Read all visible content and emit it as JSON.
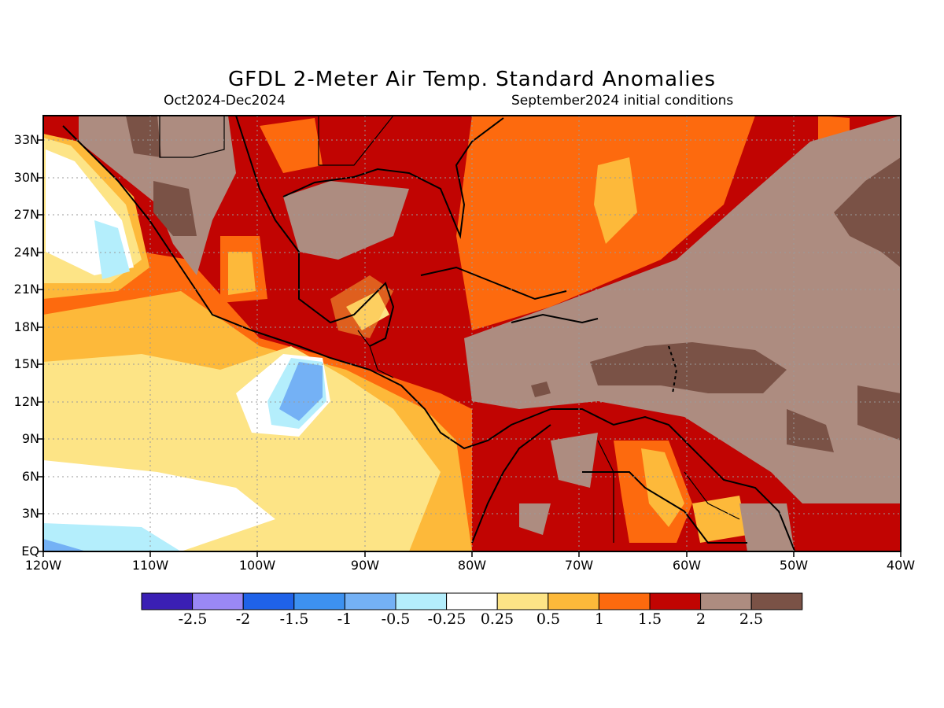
{
  "title": "GFDL 2-Meter Air Temp. Standard Anomalies",
  "period": "Oct2024-Dec2024",
  "init": "September2024 initial conditions",
  "lat_labels": [
    "33N",
    "30N",
    "27N",
    "24N",
    "21N",
    "18N",
    "15N",
    "12N",
    "9N",
    "6N",
    "3N",
    "EQ"
  ],
  "lon_labels": [
    "120W",
    "110W",
    "100W",
    "90W",
    "80W",
    "70W",
    "60W",
    "50W",
    "40W"
  ],
  "colorbar": {
    "colors": [
      "#3a1fb4",
      "#9a88f5",
      "#1f62e8",
      "#3d91f0",
      "#74b1f5",
      "#b4eefc",
      "#ffffff",
      "#fde486",
      "#fdb93a",
      "#fd6a0e",
      "#c10402",
      "#ad8c80",
      "#7a5246"
    ],
    "labels": [
      "-2.5",
      "-2",
      "-1.5",
      "-1",
      "-0.5",
      "-0.25",
      "0.25",
      "0.5",
      "1",
      "1.5",
      "2",
      "2.5"
    ]
  }
}
